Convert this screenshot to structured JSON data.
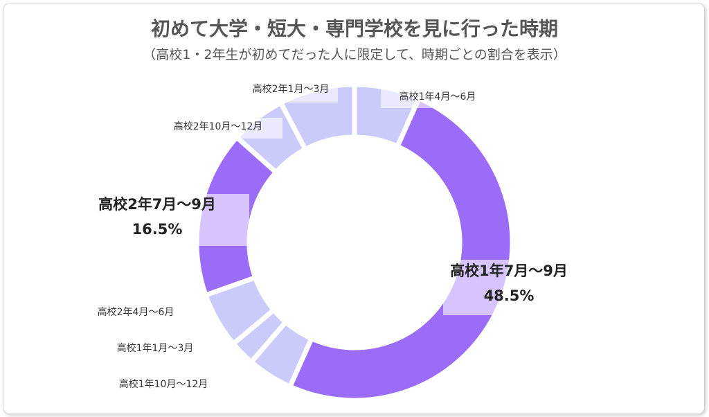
{
  "chart_data": {
    "type": "pie",
    "title": "初めて大学・短大・専門学校を見に行った時期",
    "subtitle": "（高校1・2年生が初めてだった人に限定して、時期ごとの割合を表示）",
    "unit": "%",
    "slices": [
      {
        "label": "高校1年4月～6月",
        "value": 6.5,
        "color": "#cbcbfb"
      },
      {
        "label": "高校1年7月～9月",
        "value": 48.5,
        "value_label": "48.5%",
        "color": "#9b6cf7"
      },
      {
        "label": "高校1年10月～12月",
        "value": 4.5,
        "color": "#cbcbfb"
      },
      {
        "label": "高校1年1月～3月",
        "value": 2.5,
        "color": "#cbcbfb"
      },
      {
        "label": "高校2年4月～6月",
        "value": 5.5,
        "color": "#cbcbfb"
      },
      {
        "label": "高校2年7月～9月",
        "value": 16.5,
        "value_label": "16.5%",
        "color": "#9b6cf7"
      },
      {
        "label": "高校2年10月～12月",
        "value": 5.5,
        "color": "#cbcbfb"
      },
      {
        "label": "高校2年1月～3月",
        "value": 7.5,
        "color": "#cbcbfb"
      }
    ]
  }
}
